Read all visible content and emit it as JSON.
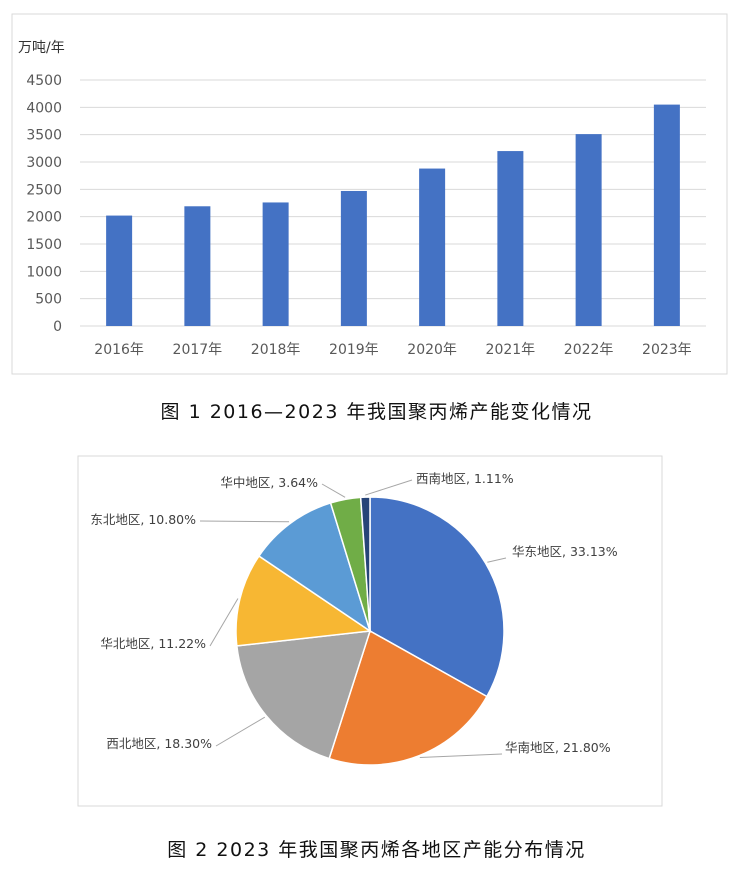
{
  "chart_data": [
    {
      "type": "bar",
      "title": "",
      "ylabel": "万吨/年",
      "xlabel": "",
      "categories": [
        "2016年",
        "2017年",
        "2018年",
        "2019年",
        "2020年",
        "2021年",
        "2022年",
        "2023年"
      ],
      "values": [
        2020,
        2190,
        2260,
        2470,
        2880,
        3200,
        3510,
        4050
      ],
      "ylim": [
        0,
        4500
      ],
      "yticks": [
        "0",
        "500",
        "1000",
        "1500",
        "2000",
        "2500",
        "3000",
        "3500",
        "4000",
        "4500"
      ],
      "grid": true,
      "color": "#4472c4"
    },
    {
      "type": "pie",
      "title": "",
      "slices": [
        {
          "name": "华东地区",
          "value": 33.13,
          "label": "华东地区, 33.13%",
          "color": "#4472c4"
        },
        {
          "name": "华南地区",
          "value": 21.8,
          "label": "华南地区, 21.80%",
          "color": "#ed7d31"
        },
        {
          "name": "西北地区",
          "value": 18.3,
          "label": "西北地区, 18.30%",
          "color": "#a5a5a5"
        },
        {
          "name": "华北地区",
          "value": 11.22,
          "label": "华北地区, 11.22%",
          "color": "#f7b733"
        },
        {
          "name": "东北地区",
          "value": 10.8,
          "label": "东北地区, 10.80%",
          "color": "#5b9bd5"
        },
        {
          "name": "华中地区",
          "value": 3.64,
          "label": "华中地区, 3.64%",
          "color": "#70ad47"
        },
        {
          "name": "西南地区",
          "value": 1.11,
          "label": "西南地区, 1.11%",
          "color": "#264478"
        }
      ]
    }
  ],
  "captions": {
    "fig1": "图 1 2016—2023 年我国聚丙烯产能变化情况",
    "fig2": "图 2  2023 年我国聚丙烯各地区产能分布情况"
  }
}
